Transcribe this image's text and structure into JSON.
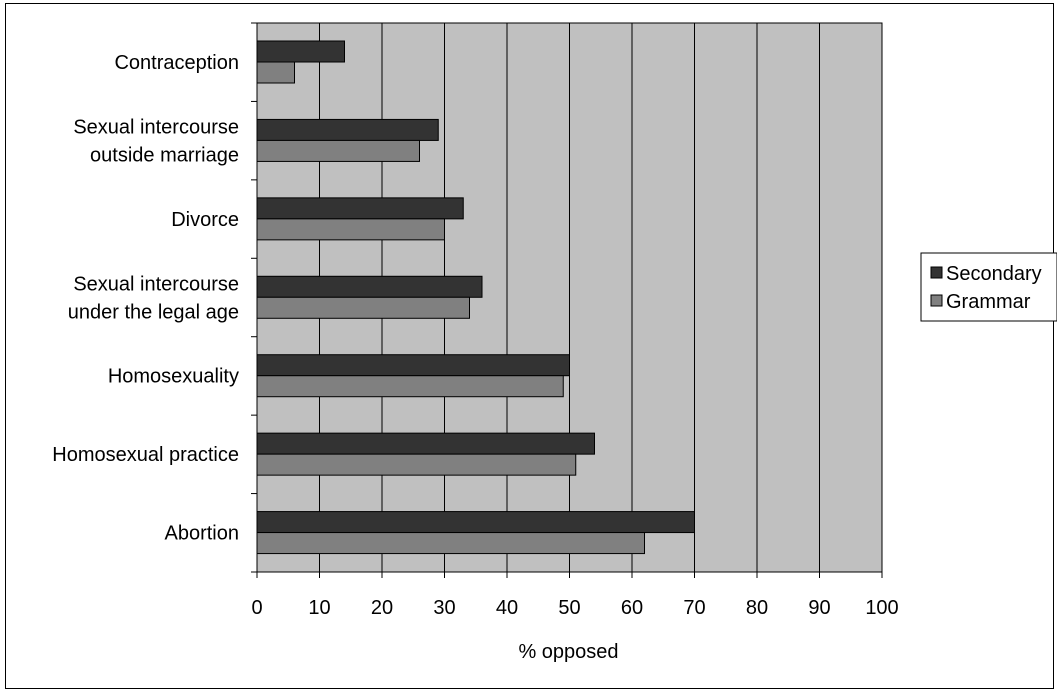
{
  "chart_data": {
    "type": "bar",
    "orientation": "horizontal",
    "categories": [
      [
        "Contraception"
      ],
      [
        "Sexual intercourse",
        "outside marriage"
      ],
      [
        "Divorce"
      ],
      [
        "Sexual intercourse",
        "under the legal age"
      ],
      [
        "Homosexuality"
      ],
      [
        "Homosexual practice"
      ],
      [
        "Abortion"
      ]
    ],
    "series": [
      {
        "name": "Secondary",
        "color": "#333333",
        "values": [
          14,
          29,
          33,
          36,
          50,
          54,
          70
        ]
      },
      {
        "name": "Grammar",
        "color": "#808080",
        "values": [
          6,
          26,
          30,
          34,
          49,
          51,
          62
        ]
      }
    ],
    "xlabel": "% opposed",
    "xlim": [
      0,
      100
    ],
    "xticks": [
      "0",
      "10",
      "20",
      "30",
      "40",
      "50",
      "60",
      "70",
      "80",
      "90",
      "100"
    ],
    "grid": true,
    "plot_background": "#c0c0c0",
    "legend_position": "right"
  }
}
